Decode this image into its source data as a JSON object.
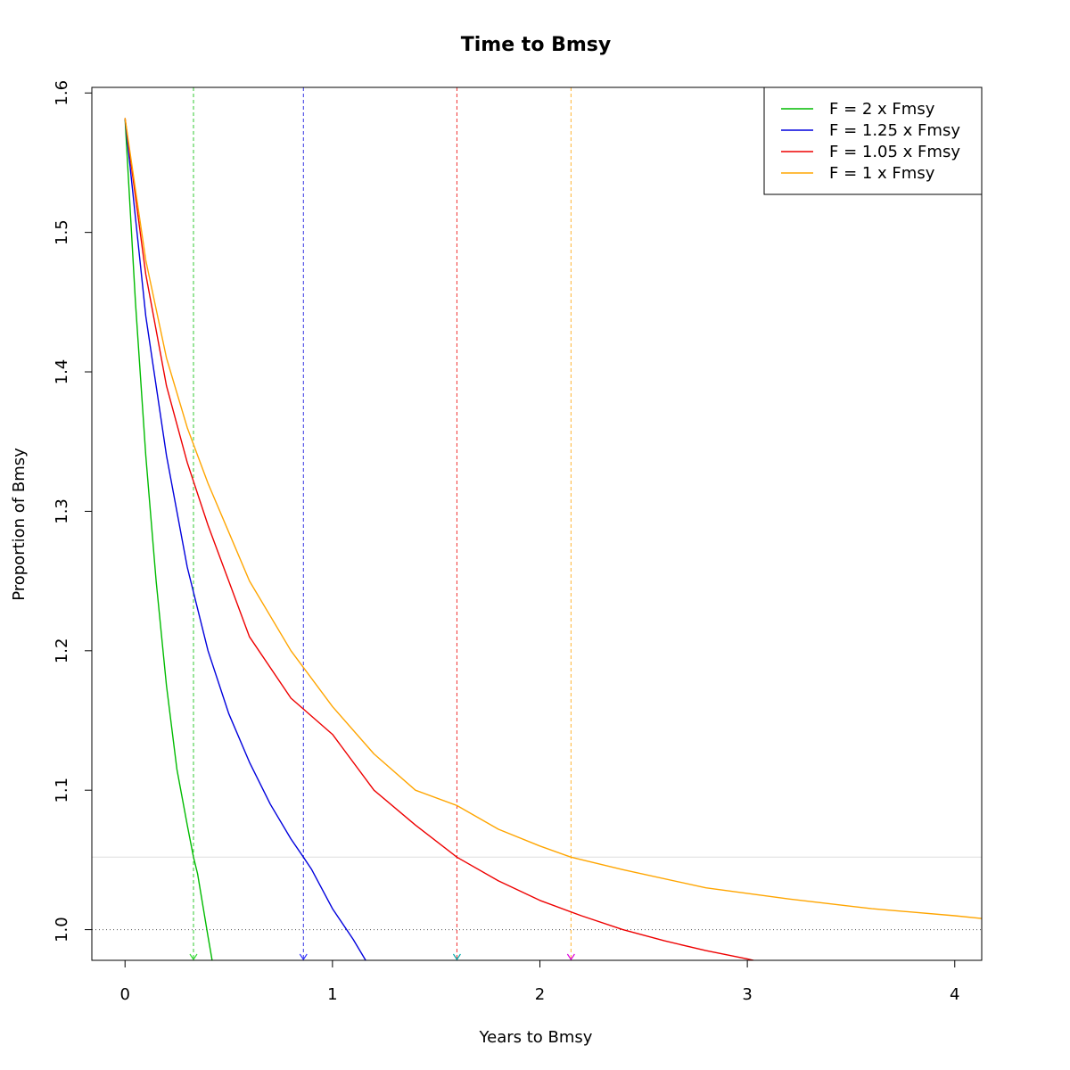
{
  "chart_data": {
    "type": "line",
    "title": "Time to Bmsy",
    "xlabel": "Years to Bmsy",
    "ylabel": "Proportion of Bmsy",
    "xlim": [
      -0.16,
      4.13
    ],
    "ylim": [
      0.978,
      1.604
    ],
    "x_ticks": [
      0,
      1,
      2,
      3,
      4
    ],
    "x_tick_labels": [
      "0",
      "1",
      "2",
      "3",
      "4"
    ],
    "y_ticks": [
      1.0,
      1.1,
      1.2,
      1.3,
      1.4,
      1.5,
      1.6
    ],
    "y_tick_labels": [
      "1.0",
      "1.1",
      "1.2",
      "1.3",
      "1.4",
      "1.5",
      "1.6"
    ],
    "grid": false,
    "legend_position": "top-right",
    "reference_lines": [
      {
        "orientation": "horizontal",
        "y": 1.0,
        "style": "dotted",
        "color": "#555555"
      },
      {
        "orientation": "horizontal",
        "y": 1.052,
        "style": "solid",
        "color": "#dddddd"
      }
    ],
    "series": [
      {
        "name": "F = 2 x Fmsy",
        "color": "#00bb00",
        "marker_color": "#33dd33",
        "x": [
          0,
          0.05,
          0.1,
          0.15,
          0.2,
          0.25,
          0.3,
          0.33,
          0.35,
          0.4,
          0.42
        ],
        "y": [
          1.582,
          1.45,
          1.34,
          1.25,
          1.175,
          1.115,
          1.075,
          1.052,
          1.04,
          0.995,
          0.978
        ],
        "vline_x": 0.33
      },
      {
        "name": "F = 1.25 x Fmsy",
        "color": "#0000dd",
        "marker_color": "#3333ff",
        "x": [
          0,
          0.1,
          0.2,
          0.3,
          0.4,
          0.5,
          0.6,
          0.7,
          0.8,
          0.86,
          0.9,
          1.0,
          1.1,
          1.16
        ],
        "y": [
          1.582,
          1.44,
          1.34,
          1.26,
          1.2,
          1.155,
          1.12,
          1.09,
          1.065,
          1.052,
          1.043,
          1.015,
          0.993,
          0.978
        ],
        "vline_x": 0.86
      },
      {
        "name": "F = 1.05 x Fmsy",
        "color": "#ee0000",
        "marker_color": "#00aaaa",
        "x": [
          0,
          0.1,
          0.2,
          0.3,
          0.4,
          0.6,
          0.8,
          1.0,
          1.2,
          1.4,
          1.6,
          1.8,
          2.0,
          2.2,
          2.4,
          2.6,
          2.8,
          3.0,
          3.03
        ],
        "y": [
          1.582,
          1.47,
          1.39,
          1.335,
          1.29,
          1.21,
          1.166,
          1.14,
          1.1,
          1.075,
          1.052,
          1.035,
          1.021,
          1.01,
          1.0,
          0.992,
          0.985,
          0.979,
          0.978
        ],
        "vline_x": 1.6
      },
      {
        "name": "F = 1 x Fmsy",
        "color": "#ffa500",
        "marker_color": "#dd00dd",
        "x": [
          0,
          0.1,
          0.2,
          0.3,
          0.4,
          0.6,
          0.8,
          1.0,
          1.2,
          1.4,
          1.6,
          1.8,
          2.0,
          2.15,
          2.4,
          2.8,
          3.2,
          3.6,
          4.0,
          4.13
        ],
        "y": [
          1.582,
          1.48,
          1.41,
          1.36,
          1.32,
          1.25,
          1.2,
          1.16,
          1.126,
          1.1,
          1.089,
          1.072,
          1.06,
          1.052,
          1.043,
          1.03,
          1.022,
          1.015,
          1.01,
          1.008
        ],
        "vline_x": 2.15
      }
    ]
  }
}
